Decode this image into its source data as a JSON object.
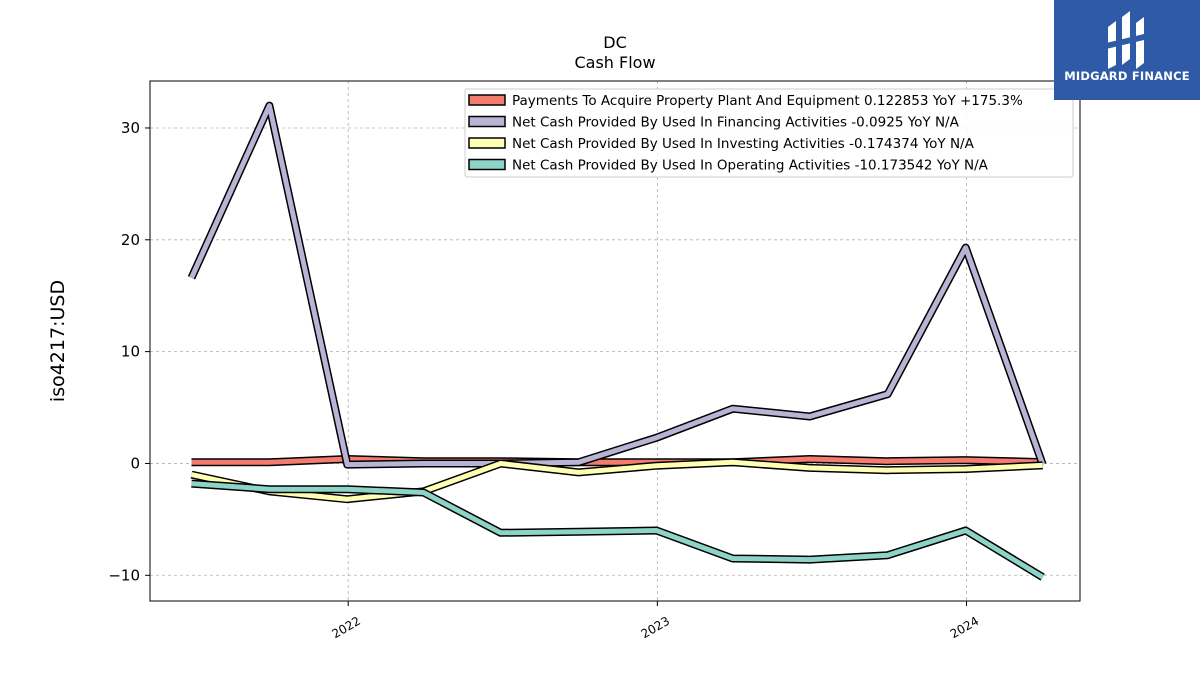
{
  "brand": {
    "name": "MIDGARD FINANCE",
    "background": "#2f5aa8",
    "icon": "midgard-logo-icon"
  },
  "chart_data": {
    "type": "line",
    "title": "DC",
    "subtitle": "Cash Flow",
    "xlabel": "",
    "ylabel": "iso4217:USD",
    "x": [
      "2021-06-30",
      "2021-09-30",
      "2021-12-31",
      "2022-03-31",
      "2022-06-30",
      "2022-09-30",
      "2022-12-31",
      "2023-03-31",
      "2023-06-30",
      "2023-09-30",
      "2023-12-31",
      "2024-03-31"
    ],
    "xlim": [
      "2021-05-12",
      "2024-05-14"
    ],
    "xticks": [
      {
        "date": "2022-01-01",
        "label": "2022"
      },
      {
        "date": "2023-01-01",
        "label": "2023"
      },
      {
        "date": "2024-01-01",
        "label": "2024"
      }
    ],
    "ylim": [
      -12.3,
      34.2
    ],
    "yticks": [
      -10,
      0,
      10,
      20,
      30
    ],
    "grid": true,
    "legend_position": "top-right",
    "series": [
      {
        "name": "Payments To Acquire Property Plant And Equipment  0.122853 YoY +175.3%",
        "color": "#f47c6e",
        "values": [
          0.1,
          0.1,
          0.4,
          0.2,
          0.2,
          0.1,
          0.1,
          0.1,
          0.4,
          0.2,
          0.3,
          0.12
        ]
      },
      {
        "name": "Net Cash Provided By Used In Financing Activities  -0.0925 YoY N/A",
        "color": "#b9b3d6",
        "values": [
          16.6,
          32.0,
          -0.1,
          0.0,
          0.0,
          0.1,
          2.3,
          4.9,
          4.2,
          6.2,
          19.3,
          -0.09
        ]
      },
      {
        "name": "Net Cash Provided By Used In Investing Activities  -0.174374 YoY N/A",
        "color": "#ffffb3",
        "values": [
          -1.0,
          -2.5,
          -3.2,
          -2.5,
          0.0,
          -0.8,
          -0.2,
          0.1,
          -0.4,
          -0.6,
          -0.5,
          -0.17
        ]
      },
      {
        "name": "Net Cash Provided By Used In Operating Activities  -10.173542 YoY N/A",
        "color": "#8dd3c7",
        "values": [
          -1.8,
          -2.3,
          -2.3,
          -2.6,
          -6.2,
          -6.1,
          -6.0,
          -8.5,
          -8.6,
          -8.2,
          -6.0,
          -10.17
        ]
      }
    ]
  }
}
